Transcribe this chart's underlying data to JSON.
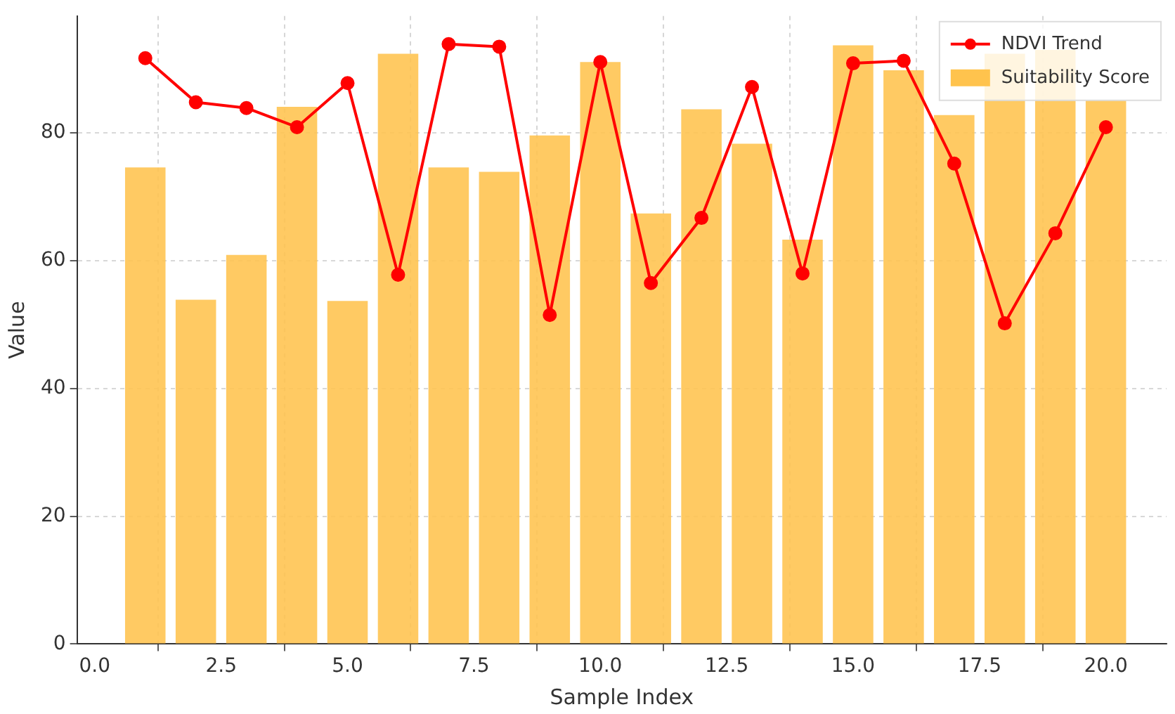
{
  "chart_data": {
    "type": "bar",
    "xlabel": "Sample Index",
    "ylabel": "Value",
    "x": [
      1,
      2,
      3,
      4,
      5,
      6,
      7,
      8,
      9,
      10,
      11,
      12,
      13,
      14,
      15,
      16,
      17,
      18,
      19,
      20
    ],
    "series": [
      {
        "name": "NDVI Trend",
        "type": "line",
        "color": "#ff0000",
        "marker": "circle",
        "values": [
          91.7,
          84.8,
          83.9,
          80.9,
          87.8,
          57.8,
          93.9,
          93.5,
          51.5,
          91.1,
          56.5,
          66.7,
          87.2,
          58,
          90.9,
          91.3,
          75.2,
          50.2,
          64.3,
          80.9
        ]
      },
      {
        "name": "Suitability Score",
        "color": "#ffc34d",
        "values": [
          74.6,
          53.9,
          60.9,
          84.1,
          53.7,
          92.4,
          74.6,
          73.9,
          79.6,
          91.1,
          67.4,
          83.7,
          78.3,
          63.3,
          93.7,
          89.8,
          82.8,
          92.4,
          93,
          85.2
        ]
      }
    ],
    "xlim": [
      -0.35,
      21.2
    ],
    "ylim": [
      0,
      98.3
    ],
    "xticks": [
      {
        "value": 0,
        "label": "0.0"
      },
      {
        "value": 2.5,
        "label": "2.5"
      },
      {
        "value": 5,
        "label": "5.0"
      },
      {
        "value": 7.5,
        "label": "7.5"
      },
      {
        "value": 10,
        "label": "10.0"
      },
      {
        "value": 12.5,
        "label": "12.5"
      },
      {
        "value": 15,
        "label": "15.0"
      },
      {
        "value": 17.5,
        "label": "17.5"
      },
      {
        "value": 20,
        "label": "20.0"
      }
    ],
    "yticks": [
      0,
      20,
      40,
      60,
      80
    ],
    "grid": true,
    "legend": "top right"
  }
}
